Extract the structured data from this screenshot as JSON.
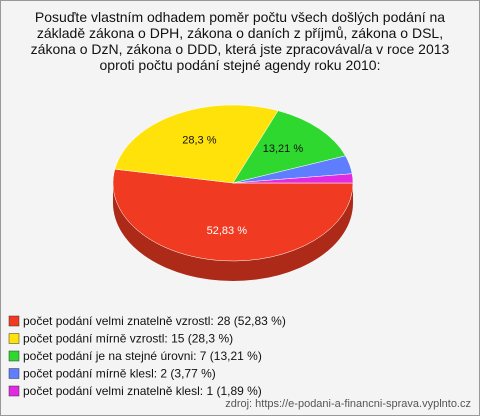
{
  "chart_data": {
    "type": "pie",
    "title": "Posuďte vlastním odhadem poměr počtu všech došlých podání na\nzákladě zákona o DPH, zákona o daních z příjmů, zákona o DSL,\nzákona o DzN, zákona o DDD, která jste zpracovával/a v roce 2013\noproti počtu podání stejné agendy roku 2010:",
    "categories": [
      "počet podání velmi znatelně vzrostl: 28 (52,83 %)",
      "počet podání mírně vzrostl: 15 (28,3 %)",
      "počet podání je na stejné úrovni: 7 (13,21 %)",
      "počet podání mírně klesl: 2 (3,77 %)",
      "počet podání velmi znatelně klesl: 1 (1,89 %)"
    ],
    "values": [
      52.83,
      28.3,
      13.21,
      3.77,
      1.89
    ],
    "value_labels": [
      "52,83 %",
      "28,3 %",
      "13,21 %",
      null,
      null
    ],
    "colors": [
      "#f03a22",
      "#ffe20a",
      "#2ed82e",
      "#5f7dff",
      "#e22ae2"
    ],
    "source": "zdroj: https://e-podani-a-financni-sprava.vyplnto.cz"
  }
}
